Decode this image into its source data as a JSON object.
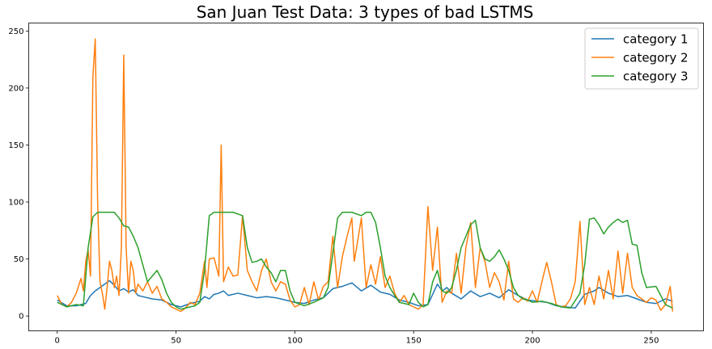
{
  "chart_data": {
    "type": "line",
    "title": "San Juan Test Data: 3 types of bad LSTMS",
    "xlabel": "",
    "ylabel": "",
    "xlim": [
      -12,
      272
    ],
    "ylim": [
      -13,
      257
    ],
    "xticks": [
      0,
      50,
      100,
      150,
      200,
      250
    ],
    "yticks": [
      0,
      50,
      100,
      150,
      200,
      250
    ],
    "grid": false,
    "legend_position": "top-right",
    "series": [
      {
        "name": "category 1",
        "color": "#1f77b4",
        "points": [
          [
            0,
            14
          ],
          [
            4,
            9
          ],
          [
            8,
            9
          ],
          [
            12,
            11
          ],
          [
            14,
            18
          ],
          [
            16,
            22
          ],
          [
            18,
            25
          ],
          [
            20,
            28
          ],
          [
            22,
            31
          ],
          [
            24,
            27
          ],
          [
            26,
            22
          ],
          [
            28,
            24
          ],
          [
            30,
            21
          ],
          [
            32,
            23
          ],
          [
            34,
            18
          ],
          [
            36,
            17
          ],
          [
            40,
            15
          ],
          [
            44,
            14
          ],
          [
            48,
            10
          ],
          [
            52,
            8
          ],
          [
            56,
            11
          ],
          [
            60,
            13
          ],
          [
            62,
            17
          ],
          [
            64,
            15
          ],
          [
            66,
            19
          ],
          [
            68,
            20
          ],
          [
            70,
            22
          ],
          [
            72,
            18
          ],
          [
            76,
            20
          ],
          [
            80,
            18
          ],
          [
            84,
            16
          ],
          [
            88,
            17
          ],
          [
            92,
            16
          ],
          [
            96,
            14
          ],
          [
            100,
            12
          ],
          [
            104,
            11
          ],
          [
            108,
            14
          ],
          [
            112,
            16
          ],
          [
            116,
            24
          ],
          [
            120,
            26
          ],
          [
            124,
            29
          ],
          [
            128,
            22
          ],
          [
            132,
            27
          ],
          [
            136,
            21
          ],
          [
            140,
            19
          ],
          [
            144,
            14
          ],
          [
            148,
            12
          ],
          [
            152,
            9
          ],
          [
            156,
            10
          ],
          [
            160,
            28
          ],
          [
            162,
            22
          ],
          [
            164,
            25
          ],
          [
            166,
            20
          ],
          [
            170,
            15
          ],
          [
            174,
            22
          ],
          [
            178,
            17
          ],
          [
            182,
            20
          ],
          [
            186,
            16
          ],
          [
            190,
            23
          ],
          [
            194,
            18
          ],
          [
            198,
            14
          ],
          [
            202,
            13
          ],
          [
            206,
            12
          ],
          [
            210,
            9
          ],
          [
            214,
            8
          ],
          [
            218,
            7
          ],
          [
            222,
            19
          ],
          [
            226,
            22
          ],
          [
            228,
            25
          ],
          [
            232,
            20
          ],
          [
            236,
            17
          ],
          [
            240,
            18
          ],
          [
            244,
            15
          ],
          [
            248,
            12
          ],
          [
            252,
            11
          ],
          [
            256,
            15
          ],
          [
            259,
            13
          ]
        ]
      },
      {
        "name": "category 2",
        "color": "#ff7f0e",
        "points": [
          [
            0,
            18
          ],
          [
            2,
            10
          ],
          [
            4,
            8
          ],
          [
            6,
            12
          ],
          [
            8,
            20
          ],
          [
            10,
            33
          ],
          [
            11,
            22
          ],
          [
            12,
            48
          ],
          [
            13,
            58
          ],
          [
            14,
            35
          ],
          [
            15,
            210
          ],
          [
            16,
            243
          ],
          [
            17,
            100
          ],
          [
            18,
            30
          ],
          [
            19,
            20
          ],
          [
            20,
            6
          ],
          [
            21,
            25
          ],
          [
            22,
            48
          ],
          [
            23,
            40
          ],
          [
            24,
            25
          ],
          [
            25,
            35
          ],
          [
            26,
            18
          ],
          [
            27,
            60
          ],
          [
            28,
            229
          ],
          [
            29,
            60
          ],
          [
            30,
            20
          ],
          [
            31,
            48
          ],
          [
            32,
            40
          ],
          [
            33,
            20
          ],
          [
            34,
            28
          ],
          [
            36,
            22
          ],
          [
            38,
            30
          ],
          [
            40,
            20
          ],
          [
            42,
            26
          ],
          [
            44,
            15
          ],
          [
            46,
            12
          ],
          [
            48,
            8
          ],
          [
            50,
            6
          ],
          [
            52,
            4
          ],
          [
            54,
            7
          ],
          [
            56,
            12
          ],
          [
            58,
            10
          ],
          [
            60,
            20
          ],
          [
            62,
            48
          ],
          [
            63,
            25
          ],
          [
            64,
            50
          ],
          [
            66,
            51
          ],
          [
            68,
            35
          ],
          [
            69,
            150
          ],
          [
            70,
            30
          ],
          [
            72,
            43
          ],
          [
            74,
            35
          ],
          [
            76,
            36
          ],
          [
            78,
            88
          ],
          [
            80,
            40
          ],
          [
            82,
            30
          ],
          [
            84,
            22
          ],
          [
            86,
            40
          ],
          [
            88,
            50
          ],
          [
            90,
            30
          ],
          [
            92,
            22
          ],
          [
            94,
            30
          ],
          [
            96,
            28
          ],
          [
            98,
            14
          ],
          [
            100,
            8
          ],
          [
            102,
            10
          ],
          [
            104,
            25
          ],
          [
            106,
            10
          ],
          [
            108,
            30
          ],
          [
            110,
            14
          ],
          [
            112,
            26
          ],
          [
            114,
            30
          ],
          [
            116,
            70
          ],
          [
            118,
            25
          ],
          [
            120,
            52
          ],
          [
            122,
            70
          ],
          [
            124,
            86
          ],
          [
            125,
            48
          ],
          [
            126,
            60
          ],
          [
            128,
            86
          ],
          [
            130,
            25
          ],
          [
            132,
            45
          ],
          [
            134,
            28
          ],
          [
            136,
            52
          ],
          [
            138,
            25
          ],
          [
            140,
            35
          ],
          [
            142,
            20
          ],
          [
            144,
            12
          ],
          [
            146,
            18
          ],
          [
            148,
            10
          ],
          [
            150,
            8
          ],
          [
            152,
            6
          ],
          [
            154,
            10
          ],
          [
            156,
            96
          ],
          [
            158,
            40
          ],
          [
            160,
            78
          ],
          [
            162,
            12
          ],
          [
            164,
            22
          ],
          [
            166,
            20
          ],
          [
            168,
            55
          ],
          [
            170,
            20
          ],
          [
            172,
            60
          ],
          [
            174,
            82
          ],
          [
            176,
            25
          ],
          [
            178,
            60
          ],
          [
            180,
            48
          ],
          [
            182,
            25
          ],
          [
            184,
            38
          ],
          [
            186,
            30
          ],
          [
            188,
            14
          ],
          [
            190,
            48
          ],
          [
            192,
            15
          ],
          [
            194,
            12
          ],
          [
            196,
            16
          ],
          [
            198,
            13
          ],
          [
            200,
            22
          ],
          [
            202,
            12
          ],
          [
            204,
            30
          ],
          [
            206,
            47
          ],
          [
            208,
            30
          ],
          [
            210,
            10
          ],
          [
            212,
            8
          ],
          [
            214,
            9
          ],
          [
            216,
            15
          ],
          [
            218,
            30
          ],
          [
            220,
            83
          ],
          [
            222,
            10
          ],
          [
            224,
            25
          ],
          [
            226,
            10
          ],
          [
            228,
            35
          ],
          [
            230,
            15
          ],
          [
            232,
            40
          ],
          [
            234,
            15
          ],
          [
            236,
            57
          ],
          [
            238,
            20
          ],
          [
            240,
            55
          ],
          [
            242,
            25
          ],
          [
            244,
            18
          ],
          [
            246,
            15
          ],
          [
            248,
            12
          ],
          [
            250,
            16
          ],
          [
            252,
            14
          ],
          [
            254,
            5
          ],
          [
            256,
            10
          ],
          [
            258,
            26
          ],
          [
            259,
            4
          ]
        ]
      },
      {
        "name": "category 3",
        "color": "#2ca02c",
        "points": [
          [
            0,
            12
          ],
          [
            4,
            8
          ],
          [
            8,
            10
          ],
          [
            11,
            9
          ],
          [
            13,
            60
          ],
          [
            15,
            87
          ],
          [
            17,
            91
          ],
          [
            20,
            91
          ],
          [
            24,
            91
          ],
          [
            26,
            86
          ],
          [
            28,
            79
          ],
          [
            30,
            78
          ],
          [
            32,
            70
          ],
          [
            34,
            60
          ],
          [
            36,
            45
          ],
          [
            38,
            30
          ],
          [
            40,
            35
          ],
          [
            42,
            40
          ],
          [
            44,
            32
          ],
          [
            46,
            20
          ],
          [
            48,
            12
          ],
          [
            50,
            8
          ],
          [
            52,
            6
          ],
          [
            54,
            7
          ],
          [
            58,
            9
          ],
          [
            60,
            12
          ],
          [
            62,
            40
          ],
          [
            64,
            88
          ],
          [
            66,
            91
          ],
          [
            70,
            91
          ],
          [
            74,
            91
          ],
          [
            78,
            88
          ],
          [
            80,
            60
          ],
          [
            82,
            47
          ],
          [
            84,
            48
          ],
          [
            86,
            50
          ],
          [
            88,
            43
          ],
          [
            90,
            38
          ],
          [
            92,
            30
          ],
          [
            94,
            40
          ],
          [
            96,
            40
          ],
          [
            98,
            22
          ],
          [
            100,
            12
          ],
          [
            104,
            9
          ],
          [
            108,
            12
          ],
          [
            112,
            16
          ],
          [
            114,
            25
          ],
          [
            116,
            55
          ],
          [
            118,
            86
          ],
          [
            120,
            91
          ],
          [
            124,
            91
          ],
          [
            128,
            88
          ],
          [
            130,
            91
          ],
          [
            132,
            91
          ],
          [
            134,
            82
          ],
          [
            136,
            60
          ],
          [
            138,
            35
          ],
          [
            140,
            25
          ],
          [
            142,
            18
          ],
          [
            144,
            12
          ],
          [
            148,
            10
          ],
          [
            150,
            20
          ],
          [
            152,
            12
          ],
          [
            154,
            8
          ],
          [
            156,
            10
          ],
          [
            158,
            30
          ],
          [
            160,
            40
          ],
          [
            162,
            22
          ],
          [
            164,
            20
          ],
          [
            166,
            25
          ],
          [
            168,
            40
          ],
          [
            170,
            60
          ],
          [
            172,
            70
          ],
          [
            174,
            80
          ],
          [
            176,
            84
          ],
          [
            178,
            60
          ],
          [
            180,
            50
          ],
          [
            182,
            48
          ],
          [
            184,
            52
          ],
          [
            186,
            58
          ],
          [
            188,
            50
          ],
          [
            190,
            40
          ],
          [
            192,
            25
          ],
          [
            194,
            18
          ],
          [
            196,
            15
          ],
          [
            198,
            14
          ],
          [
            200,
            12
          ],
          [
            204,
            13
          ],
          [
            208,
            11
          ],
          [
            212,
            8
          ],
          [
            216,
            7
          ],
          [
            220,
            20
          ],
          [
            222,
            45
          ],
          [
            224,
            85
          ],
          [
            226,
            86
          ],
          [
            228,
            80
          ],
          [
            230,
            72
          ],
          [
            232,
            78
          ],
          [
            234,
            82
          ],
          [
            236,
            85
          ],
          [
            238,
            82
          ],
          [
            240,
            84
          ],
          [
            242,
            63
          ],
          [
            244,
            62
          ],
          [
            246,
            38
          ],
          [
            248,
            25
          ],
          [
            252,
            26
          ],
          [
            254,
            18
          ],
          [
            256,
            10
          ],
          [
            259,
            7
          ]
        ]
      }
    ]
  }
}
